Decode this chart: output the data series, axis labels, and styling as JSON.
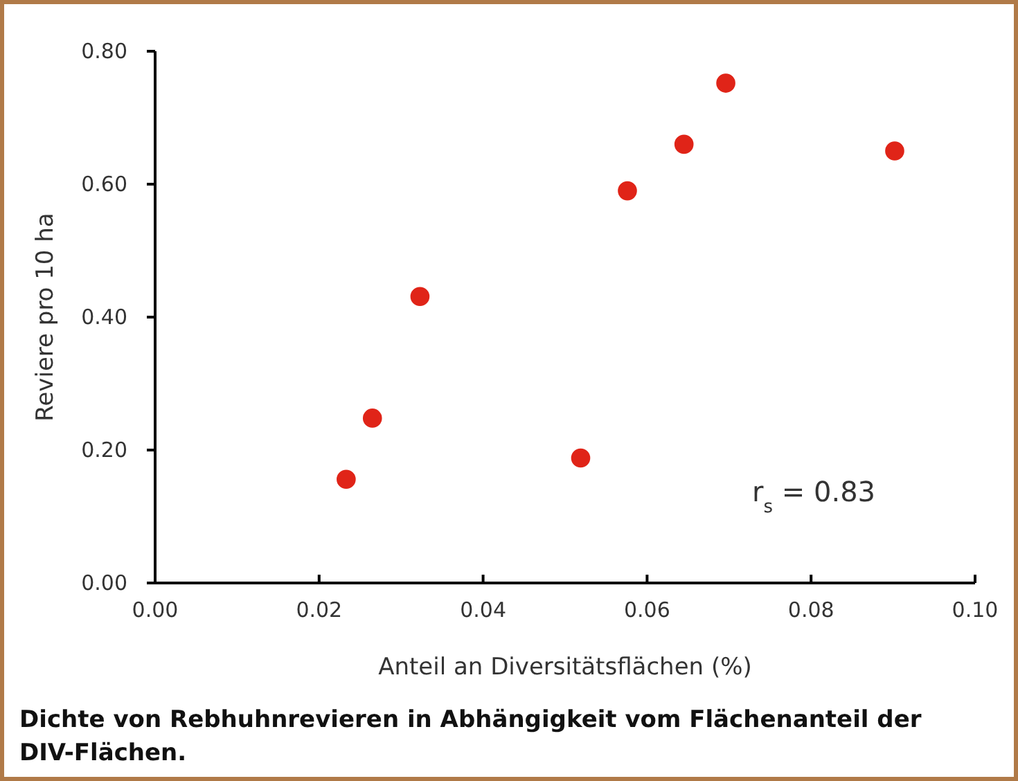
{
  "chart_data": {
    "type": "scatter",
    "title": "Dichte von Rebhuhnrevieren in Abhängigkeit vom Flächenanteil der DIV-Flächen.",
    "xlabel": "Anteil an Diversitätsflächen (%)",
    "ylabel": "Reviere pro 10 ha",
    "x": [
      0.0233,
      0.0265,
      0.0323,
      0.0519,
      0.0576,
      0.0645,
      0.0696,
      0.0902
    ],
    "series": [
      {
        "color": "#e02418",
        "values": [
          0.156,
          0.248,
          0.431,
          0.188,
          0.59,
          0.66,
          0.752,
          0.65
        ]
      }
    ],
    "xlim": [
      0,
      0.1
    ],
    "xticks": [
      {
        "value": 0,
        "label": "0.00"
      },
      {
        "value": 0.02,
        "label": "0.02"
      },
      {
        "value": 0.04,
        "label": "0.04"
      },
      {
        "value": 0.06,
        "label": "0.06"
      },
      {
        "value": 0.08,
        "label": "0.08"
      },
      {
        "value": 0.1,
        "label": "0.10"
      }
    ],
    "ylim": [
      0,
      0.8
    ],
    "yticks": [
      {
        "value": 0,
        "label": "0.00"
      },
      {
        "value": 0.2,
        "label": "0.20"
      },
      {
        "value": 0.4,
        "label": "0.40"
      },
      {
        "value": 0.6,
        "label": "0.60"
      },
      {
        "value": 0.8,
        "label": "0.80"
      }
    ],
    "marker": "circle",
    "grid": false,
    "annotations": [
      "r$_{s}$ = 0.83"
    ]
  }
}
